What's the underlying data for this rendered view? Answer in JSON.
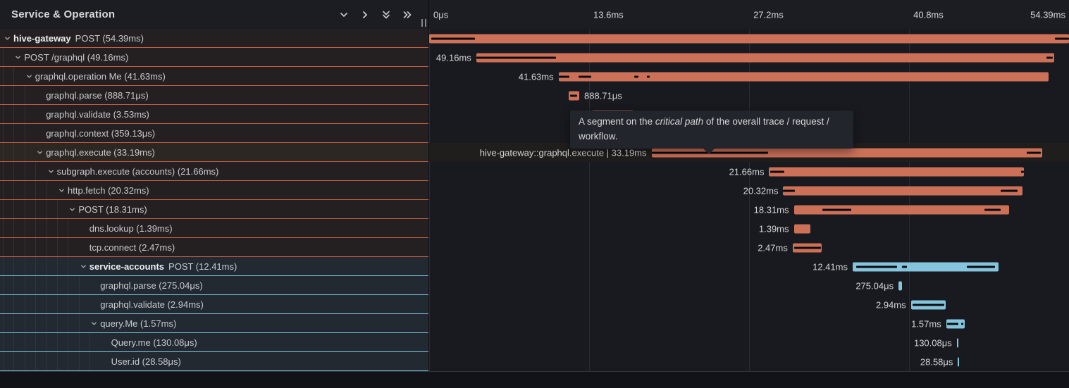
{
  "header": {
    "title": "Service & Operation",
    "controls": [
      "collapse-one",
      "expand-one",
      "collapse-all",
      "expand-all"
    ]
  },
  "timeline": {
    "total_ms": 54.39,
    "ticks": [
      {
        "label": "0μs",
        "time_ms": 0,
        "align": "left",
        "gridline": true
      },
      {
        "label": "13.6ms",
        "time_ms": 13.6,
        "align": "left",
        "gridline": true
      },
      {
        "label": "27.2ms",
        "time_ms": 27.2,
        "align": "left",
        "gridline": true
      },
      {
        "label": "40.8ms",
        "time_ms": 40.8,
        "align": "left",
        "gridline": true
      },
      {
        "label": "54.39ms",
        "time_ms": 54.39,
        "align": "right",
        "gridline": false
      }
    ]
  },
  "tooltip": {
    "prefix": "A segment on the ",
    "italic": "critical path",
    "suffix": " of the overall trace / request / workflow."
  },
  "colors": {
    "span_orange": "#CD7058",
    "span_blue": "#85C4DD",
    "row_border_orange": "#C4614A",
    "row_border_blue": "#7AB8D1",
    "critical_path": "#0A0B0D",
    "left_row_bg_orange": "#242021",
    "left_row_bg_blue": "#222931",
    "panel_bg_right": "#191A1F",
    "header_bg": "#1B1D22",
    "highlight_left": "#2C2723",
    "highlight_right": "#201E1D",
    "tooltip_bg": "#22252B"
  },
  "spans": [
    {
      "service": "hive-gateway",
      "tree_label": "POST (54.39ms)",
      "level": 0,
      "expandable": true,
      "color": "orange",
      "start_ms": 0,
      "duration_ms": 54.39,
      "bar_label": "",
      "label_side": "none",
      "highlighted": false,
      "critical_path_ms": [
        [
          0.18,
          3.9
        ],
        [
          53.2,
          54.39
        ]
      ]
    },
    {
      "tree_label": "POST /graphql (49.16ms)",
      "level": 1,
      "expandable": true,
      "color": "orange",
      "start_ms": 4.0,
      "duration_ms": 49.16,
      "bar_label": "49.16ms",
      "label_side": "left",
      "highlighted": false,
      "critical_path_ms": [
        [
          4.0,
          10.8
        ],
        [
          52.5,
          53.0
        ]
      ]
    },
    {
      "tree_label": "graphql.operation Me (41.63ms)",
      "level": 2,
      "expandable": true,
      "color": "orange",
      "start_ms": 11.0,
      "duration_ms": 41.63,
      "bar_label": "41.63ms",
      "label_side": "left",
      "highlighted": false,
      "critical_path_ms": [
        [
          11.0,
          11.9
        ],
        [
          12.7,
          13.8
        ],
        [
          17.45,
          17.8
        ],
        [
          18.5,
          18.75
        ]
      ]
    },
    {
      "tree_label": "graphql.parse (888.71μs)",
      "level": 3,
      "expandable": false,
      "color": "orange",
      "start_ms": 11.87,
      "duration_ms": 0.889,
      "bar_label": "888.71μs",
      "label_side": "right",
      "highlighted": false,
      "critical_path_ms": [
        [
          12.0,
          12.6
        ]
      ]
    },
    {
      "tree_label": "graphql.validate (3.53ms)",
      "level": 3,
      "expandable": false,
      "color": "orange",
      "start_ms": 13.85,
      "duration_ms": 3.53,
      "bar_label": "3.53ms",
      "label_side": "right",
      "highlighted": false,
      "critical_path_ms": [
        [
          14.1,
          17.3
        ]
      ]
    },
    {
      "tree_label": "graphql.context (359.13μs)",
      "level": 3,
      "expandable": false,
      "color": "orange",
      "start_ms": 17.6,
      "duration_ms": 0.35913,
      "bar_label": "359.13μs",
      "label_side": "right",
      "highlighted": false,
      "critical_path_ms": []
    },
    {
      "tree_label": "graphql.execute (33.19ms)",
      "level": 3,
      "expandable": true,
      "color": "orange",
      "start_ms": 18.9,
      "duration_ms": 33.19,
      "bar_label": "hive-gateway::graphql.execute | 33.19ms",
      "label_side": "left",
      "highlighted": true,
      "critical_path_ms": [
        [
          18.9,
          28.8
        ],
        [
          50.8,
          52.0
        ]
      ]
    },
    {
      "tree_label": "subgraph.execute (accounts) (21.66ms)",
      "level": 4,
      "expandable": true,
      "color": "orange",
      "start_ms": 28.9,
      "duration_ms": 21.66,
      "bar_label": "21.66ms",
      "label_side": "left",
      "highlighted": false,
      "critical_path_ms": [
        [
          29.0,
          30.2
        ],
        [
          50.3,
          50.55
        ]
      ]
    },
    {
      "tree_label": "http.fetch (20.32ms)",
      "level": 5,
      "expandable": true,
      "color": "orange",
      "start_ms": 30.1,
      "duration_ms": 20.32,
      "bar_label": "20.32ms",
      "label_side": "left",
      "highlighted": false,
      "critical_path_ms": [
        [
          30.1,
          31.1
        ],
        [
          48.6,
          50.0
        ]
      ]
    },
    {
      "tree_label": "POST (18.31ms)",
      "level": 6,
      "expandable": true,
      "color": "orange",
      "start_ms": 31.0,
      "duration_ms": 18.31,
      "bar_label": "18.31ms",
      "label_side": "left",
      "highlighted": false,
      "critical_path_ms": [
        [
          33.4,
          35.9
        ],
        [
          47.2,
          48.6
        ]
      ]
    },
    {
      "tree_label": "dns.lookup (1.39ms)",
      "level": 7,
      "expandable": false,
      "color": "orange",
      "start_ms": 31.0,
      "duration_ms": 1.39,
      "bar_label": "1.39ms",
      "label_side": "left",
      "highlighted": false,
      "critical_path_ms": []
    },
    {
      "tree_label": "tcp.connect (2.47ms)",
      "level": 7,
      "expandable": false,
      "color": "orange",
      "start_ms": 30.9,
      "duration_ms": 2.47,
      "bar_label": "2.47ms",
      "label_side": "left",
      "highlighted": false,
      "critical_path_ms": [
        [
          31.0,
          33.3
        ]
      ]
    },
    {
      "service": "service-accounts",
      "tree_label": "POST (12.41ms)",
      "level": 7,
      "expandable": true,
      "color": "blue",
      "start_ms": 36.0,
      "duration_ms": 12.41,
      "bar_label": "12.41ms",
      "label_side": "left",
      "highlighted": false,
      "critical_path_ms": [
        [
          36.3,
          39.8
        ],
        [
          40.2,
          40.6
        ],
        [
          45.7,
          48.1
        ]
      ]
    },
    {
      "tree_label": "graphql.parse (275.04μs)",
      "level": 8,
      "expandable": false,
      "color": "blue",
      "start_ms": 39.9,
      "duration_ms": 0.27504,
      "bar_label": "275.04μs",
      "label_side": "left",
      "highlighted": false,
      "critical_path_ms": []
    },
    {
      "tree_label": "graphql.validate (2.94ms)",
      "level": 8,
      "expandable": false,
      "color": "blue",
      "start_ms": 40.95,
      "duration_ms": 2.94,
      "bar_label": "2.94ms",
      "label_side": "left",
      "highlighted": false,
      "critical_path_ms": [
        [
          41.1,
          43.8
        ]
      ]
    },
    {
      "tree_label": "query.Me (1.57ms)",
      "level": 8,
      "expandable": true,
      "color": "blue",
      "start_ms": 43.95,
      "duration_ms": 1.57,
      "bar_label": "1.57ms",
      "label_side": "left",
      "highlighted": false,
      "critical_path_ms": [
        [
          44.0,
          45.0
        ],
        [
          45.2,
          45.4
        ]
      ]
    },
    {
      "tree_label": "Query.me (130.08μs)",
      "level": 9,
      "expandable": false,
      "color": "blue",
      "start_ms": 44.85,
      "duration_ms": 0.13008,
      "bar_label": "130.08μs",
      "label_side": "left",
      "highlighted": false,
      "critical_path_ms": []
    },
    {
      "tree_label": "User.id (28.58μs)",
      "level": 9,
      "expandable": false,
      "color": "blue",
      "start_ms": 44.95,
      "duration_ms": 0.02858,
      "bar_label": "28.58μs",
      "label_side": "left",
      "highlighted": false,
      "critical_path_ms": []
    }
  ]
}
